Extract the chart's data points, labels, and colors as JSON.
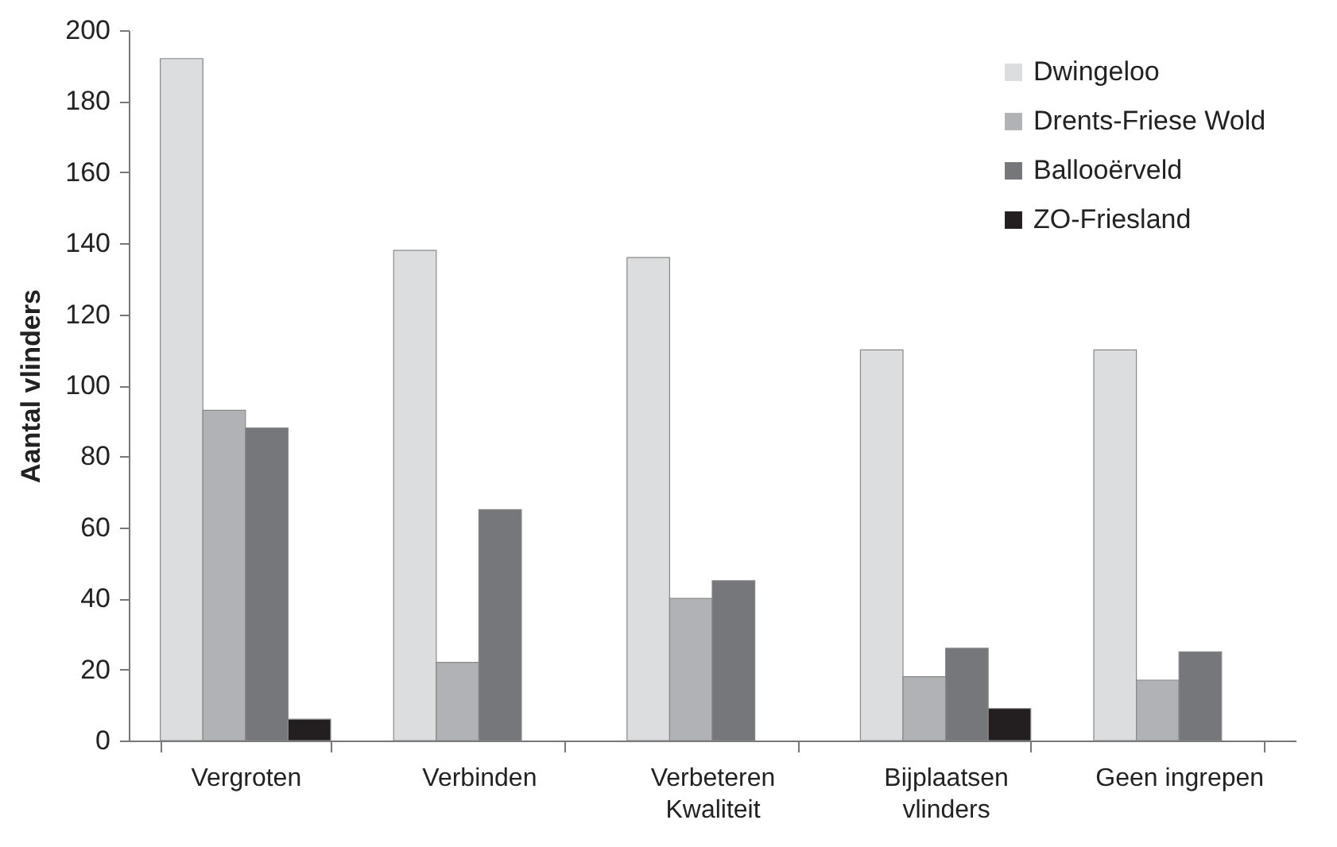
{
  "chart_data": {
    "type": "bar",
    "ylabel": "Aantal vlinders",
    "categories": [
      "Vergroten",
      "Verbinden",
      "Verbeteren\nKwaliteit",
      "Bijplaatsen\nvlinders",
      "Geen ingrepen"
    ],
    "series": [
      {
        "name": "Dwingeloo",
        "color": "#dcdddf",
        "values": [
          192,
          138,
          136,
          110,
          110
        ]
      },
      {
        "name": "Drents-Friese Wold",
        "color": "#b1b2b5",
        "values": [
          93,
          22,
          40,
          18,
          17
        ]
      },
      {
        "name": "Ballooërveld",
        "color": "#76777b",
        "values": [
          88,
          65,
          45,
          26,
          25
        ]
      },
      {
        "name": "ZO-Friesland",
        "color": "#231f20",
        "values": [
          6,
          null,
          null,
          9,
          null
        ]
      }
    ],
    "ylim": [
      0,
      200
    ],
    "yticks": [
      0,
      20,
      40,
      60,
      80,
      100,
      120,
      140,
      160,
      180,
      200
    ],
    "grid": false,
    "legend": "top right"
  }
}
